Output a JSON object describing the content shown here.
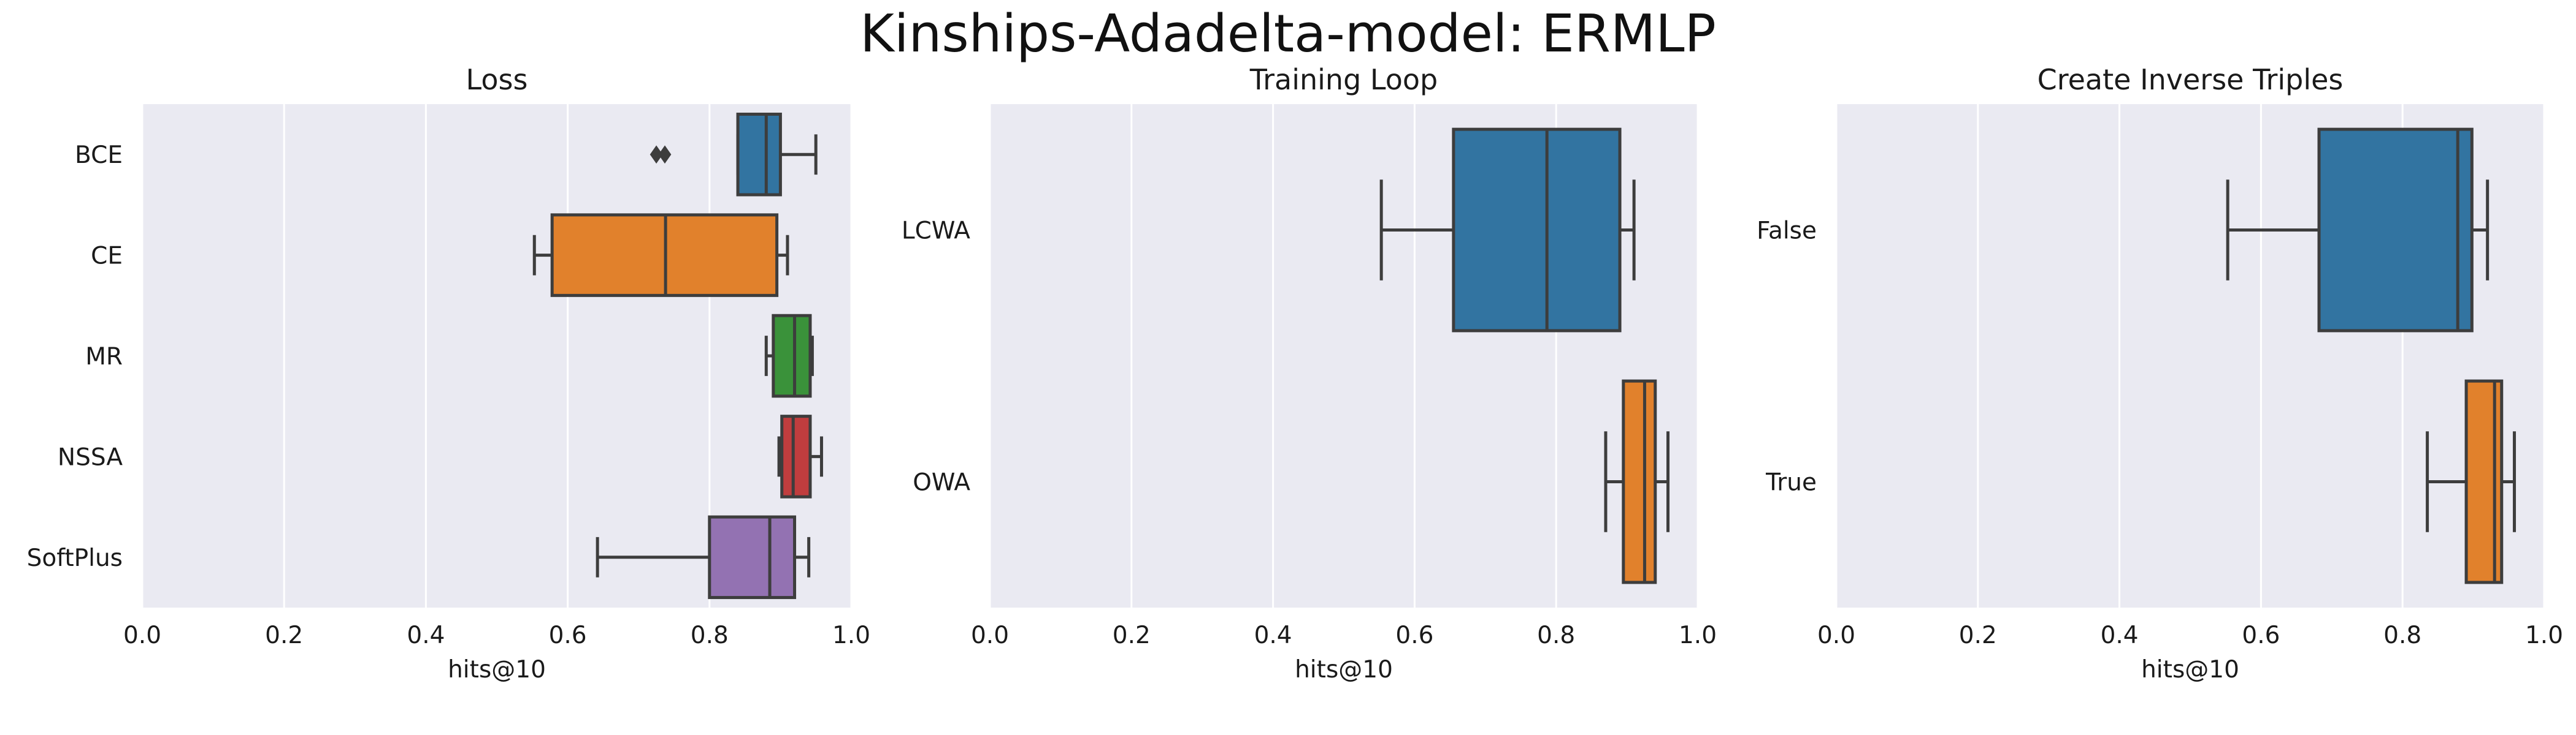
{
  "figure": {
    "title": "Kinships-Adadelta-model: ERMLP"
  },
  "chart_data": [
    {
      "type": "box",
      "orientation": "horizontal",
      "title": "Loss",
      "xlabel": "hits@10",
      "ylabel": "",
      "xlim": [
        0.0,
        1.0
      ],
      "xticks": [
        "0.0",
        "0.2",
        "0.4",
        "0.6",
        "0.8",
        "1.0"
      ],
      "grid": true,
      "categories": [
        "BCE",
        "CE",
        "MR",
        "NSSA",
        "SoftPlus"
      ],
      "boxes": [
        {
          "label": "BCE",
          "whislo": 0.84,
          "q1": 0.84,
          "med": 0.88,
          "q3": 0.9,
          "whishi": 0.95,
          "fliers": [
            0.725,
            0.737
          ],
          "color": "#3274a1"
        },
        {
          "label": "CE",
          "whislo": 0.553,
          "q1": 0.578,
          "med": 0.738,
          "q3": 0.895,
          "whishi": 0.91,
          "fliers": [],
          "color": "#e1812c"
        },
        {
          "label": "MR",
          "whislo": 0.88,
          "q1": 0.89,
          "med": 0.92,
          "q3": 0.942,
          "whishi": 0.945,
          "fliers": [],
          "color": "#3a923a"
        },
        {
          "label": "NSSA",
          "whislo": 0.898,
          "q1": 0.902,
          "med": 0.918,
          "q3": 0.942,
          "whishi": 0.958,
          "fliers": [],
          "color": "#c03d3e"
        },
        {
          "label": "SoftPlus",
          "whislo": 0.642,
          "q1": 0.8,
          "med": 0.885,
          "q3": 0.92,
          "whishi": 0.94,
          "fliers": [],
          "color": "#9372b2"
        }
      ]
    },
    {
      "type": "box",
      "orientation": "horizontal",
      "title": "Training Loop",
      "xlabel": "hits@10",
      "ylabel": "",
      "xlim": [
        0.0,
        1.0
      ],
      "xticks": [
        "0.0",
        "0.2",
        "0.4",
        "0.6",
        "0.8",
        "1.0"
      ],
      "grid": true,
      "categories": [
        "LCWA",
        "OWA"
      ],
      "boxes": [
        {
          "label": "LCWA",
          "whislo": 0.553,
          "q1": 0.655,
          "med": 0.787,
          "q3": 0.89,
          "whishi": 0.91,
          "fliers": [],
          "color": "#3274a1"
        },
        {
          "label": "OWA",
          "whislo": 0.87,
          "q1": 0.895,
          "med": 0.925,
          "q3": 0.94,
          "whishi": 0.958,
          "fliers": [],
          "color": "#e1812c"
        }
      ]
    },
    {
      "type": "box",
      "orientation": "horizontal",
      "title": "Create Inverse Triples",
      "xlabel": "hits@10",
      "ylabel": "",
      "xlim": [
        0.0,
        1.0
      ],
      "xticks": [
        "0.0",
        "0.2",
        "0.4",
        "0.6",
        "0.8",
        "1.0"
      ],
      "grid": true,
      "categories": [
        "False",
        "True"
      ],
      "boxes": [
        {
          "label": "False",
          "whislo": 0.553,
          "q1": 0.682,
          "med": 0.878,
          "q3": 0.898,
          "whishi": 0.92,
          "fliers": [],
          "color": "#3274a1"
        },
        {
          "label": "True",
          "whislo": 0.835,
          "q1": 0.89,
          "med": 0.93,
          "q3": 0.94,
          "whishi": 0.958,
          "fliers": [],
          "color": "#e1812c"
        }
      ]
    }
  ]
}
